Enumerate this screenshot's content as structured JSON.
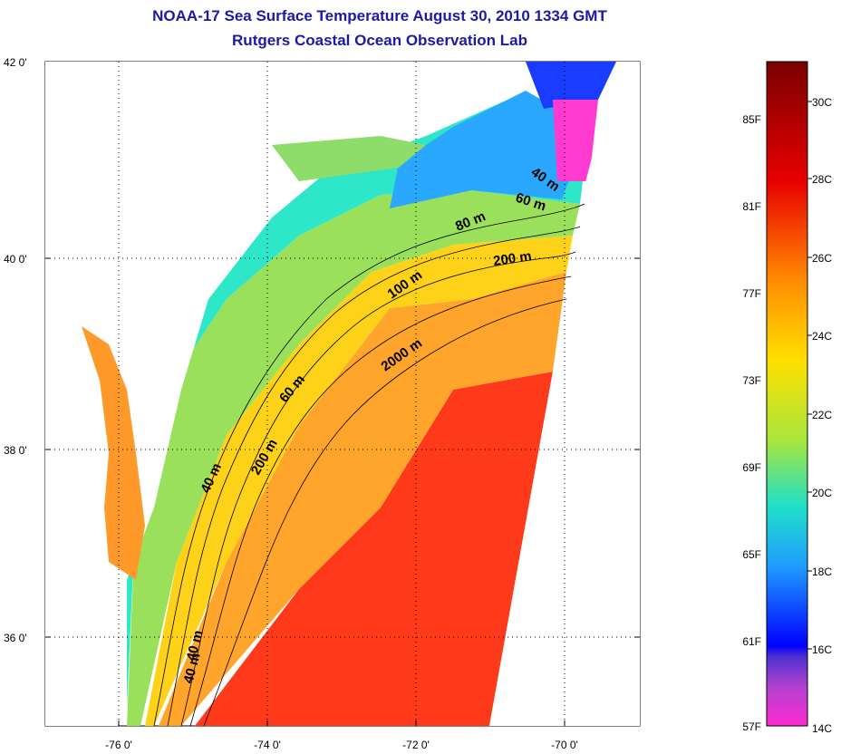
{
  "title_line1": "NOAA-17 Sea Surface Temperature August 30, 2010 1334 GMT",
  "title_line2": "Rutgers Coastal Ocean Observation Lab",
  "map": {
    "lat_ticks": [
      "42 0'",
      "40 0'",
      "38 0'",
      "36 0'"
    ],
    "lon_ticks": [
      "-76 0'",
      "-74 0'",
      "-72 0'",
      "-70 0'"
    ],
    "contour_labels": [
      "40 m",
      "60 m",
      "80 m",
      "200 m",
      "100 m",
      "2000 m",
      "60 m",
      "40 m",
      "200 m",
      "40 m",
      "40 m"
    ]
  },
  "colorbar": {
    "fahrenheit": [
      "85F",
      "81F",
      "77F",
      "73F",
      "69F",
      "65F",
      "61F",
      "57F"
    ],
    "celsius": [
      "30C",
      "28C",
      "26C",
      "24C",
      "22C",
      "20C",
      "18C",
      "16C",
      "14C"
    ]
  }
}
